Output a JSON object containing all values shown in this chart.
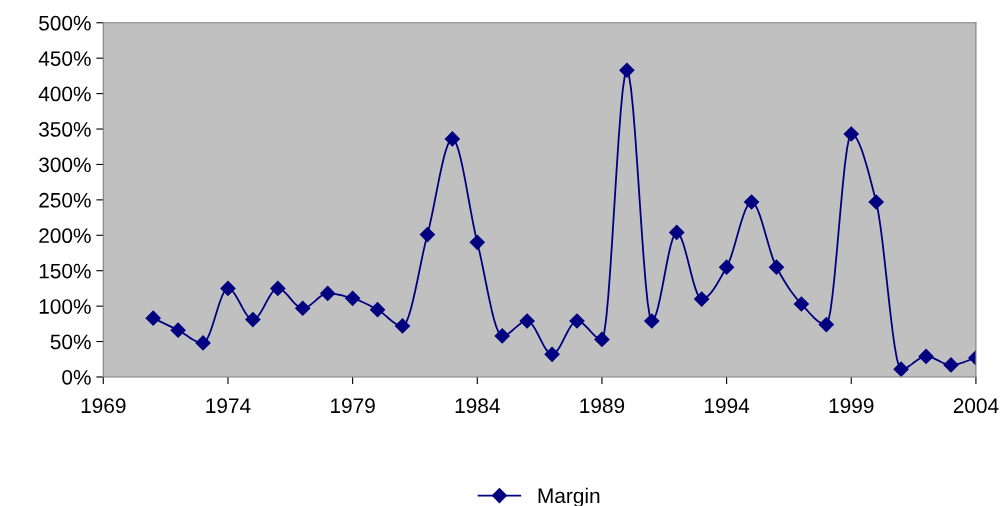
{
  "chart_data": {
    "type": "line",
    "x": [
      1971,
      1972,
      1973,
      1974,
      1975,
      1976,
      1977,
      1978,
      1979,
      1980,
      1981,
      1982,
      1983,
      1984,
      1985,
      1986,
      1987,
      1988,
      1989,
      1990,
      1991,
      1992,
      1993,
      1994,
      1995,
      1996,
      1997,
      1998,
      1999,
      2000,
      2001,
      2002,
      2003,
      2004
    ],
    "series": [
      {
        "name": "Margin",
        "color": "#000080",
        "values": [
          83,
          66,
          48,
          125,
          81,
          125,
          97,
          118,
          111,
          95,
          72,
          201,
          336,
          190,
          58,
          79,
          32,
          79,
          53,
          433,
          79,
          204,
          110,
          155,
          247,
          155,
          103,
          74,
          343,
          247,
          11,
          29,
          17,
          27
        ]
      }
    ],
    "xlim": [
      1969,
      2004
    ],
    "xticks": [
      1969,
      1974,
      1979,
      1984,
      1989,
      1994,
      1999,
      2004
    ],
    "ylim": [
      0,
      500
    ],
    "yticks": [
      {
        "value": 0,
        "label": "0%"
      },
      {
        "value": 50,
        "label": "50%"
      },
      {
        "value": 100,
        "label": "100%"
      },
      {
        "value": 150,
        "label": "150%"
      },
      {
        "value": 200,
        "label": "200%"
      },
      {
        "value": 250,
        "label": "250%"
      },
      {
        "value": 300,
        "label": "300%"
      },
      {
        "value": 350,
        "label": "350%"
      },
      {
        "value": 400,
        "label": "400%"
      },
      {
        "value": 450,
        "label": "450%"
      },
      {
        "value": 500,
        "label": "500%"
      }
    ],
    "marker": "diamond",
    "line_style": "solid",
    "grid": false,
    "legend": "bottom"
  }
}
